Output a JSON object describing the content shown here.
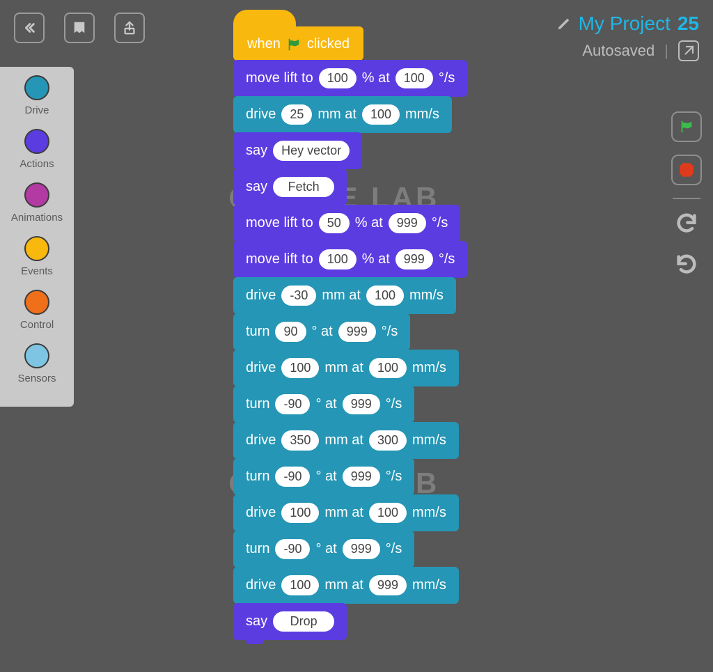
{
  "colors": {
    "bg": "#575757",
    "drive": "#2596b5",
    "actions": "#5b3ce0",
    "animations": "#b23aa2",
    "events": "#f9b80e",
    "control": "#ef6f1a",
    "sensors": "#7ec5e3",
    "accent": "#1fb7e6",
    "muted": "#bcbcbc",
    "watermark": "#7d7d7d"
  },
  "header": {
    "project_label": "My Project",
    "project_number": "25",
    "autosaved": "Autosaved"
  },
  "palette": [
    {
      "label": "Drive",
      "color_key": "drive"
    },
    {
      "label": "Actions",
      "color_key": "actions"
    },
    {
      "label": "Animations",
      "color_key": "animations"
    },
    {
      "label": "Events",
      "color_key": "events"
    },
    {
      "label": "Control",
      "color_key": "control"
    },
    {
      "label": "Sensors",
      "color_key": "sensors"
    }
  ],
  "watermark_text": "CODE LAB",
  "hat": {
    "prefix": "when",
    "suffix": "clicked"
  },
  "blocks": [
    {
      "type": "action",
      "tmpl": "lift",
      "p1": "100",
      "u1": "% at",
      "p2": "100",
      "u2": "°/s"
    },
    {
      "type": "drive",
      "tmpl": "drive",
      "p1": "25",
      "u1": "mm at",
      "p2": "100",
      "u2": "mm/s"
    },
    {
      "type": "action",
      "tmpl": "say",
      "text": "Hey vector"
    },
    {
      "type": "action",
      "tmpl": "say",
      "text": "Fetch"
    },
    {
      "type": "action",
      "tmpl": "lift",
      "p1": "50",
      "u1": "% at",
      "p2": "999",
      "u2": "°/s"
    },
    {
      "type": "action",
      "tmpl": "lift",
      "p1": "100",
      "u1": "% at",
      "p2": "999",
      "u2": "°/s"
    },
    {
      "type": "drive",
      "tmpl": "drive",
      "p1": "-30",
      "u1": "mm at",
      "p2": "100",
      "u2": "mm/s"
    },
    {
      "type": "drive",
      "tmpl": "turn",
      "p1": "90",
      "u1": "° at",
      "p2": "999",
      "u2": "°/s"
    },
    {
      "type": "drive",
      "tmpl": "drive",
      "p1": "100",
      "u1": "mm at",
      "p2": "100",
      "u2": "mm/s"
    },
    {
      "type": "drive",
      "tmpl": "turn",
      "p1": "-90",
      "u1": "° at",
      "p2": "999",
      "u2": "°/s"
    },
    {
      "type": "drive",
      "tmpl": "drive",
      "p1": "350",
      "u1": "mm at",
      "p2": "300",
      "u2": "mm/s"
    },
    {
      "type": "drive",
      "tmpl": "turn",
      "p1": "-90",
      "u1": "° at",
      "p2": "999",
      "u2": "°/s"
    },
    {
      "type": "drive",
      "tmpl": "drive",
      "p1": "100",
      "u1": "mm at",
      "p2": "100",
      "u2": "mm/s"
    },
    {
      "type": "drive",
      "tmpl": "turn",
      "p1": "-90",
      "u1": "° at",
      "p2": "999",
      "u2": "°/s"
    },
    {
      "type": "drive",
      "tmpl": "drive",
      "p1": "100",
      "u1": "mm at",
      "p2": "999",
      "u2": "mm/s"
    },
    {
      "type": "action",
      "tmpl": "say",
      "text": "Drop"
    }
  ],
  "labels": {
    "move_lift_to": "move lift to",
    "drive": "drive",
    "turn": "turn",
    "say": "say"
  }
}
